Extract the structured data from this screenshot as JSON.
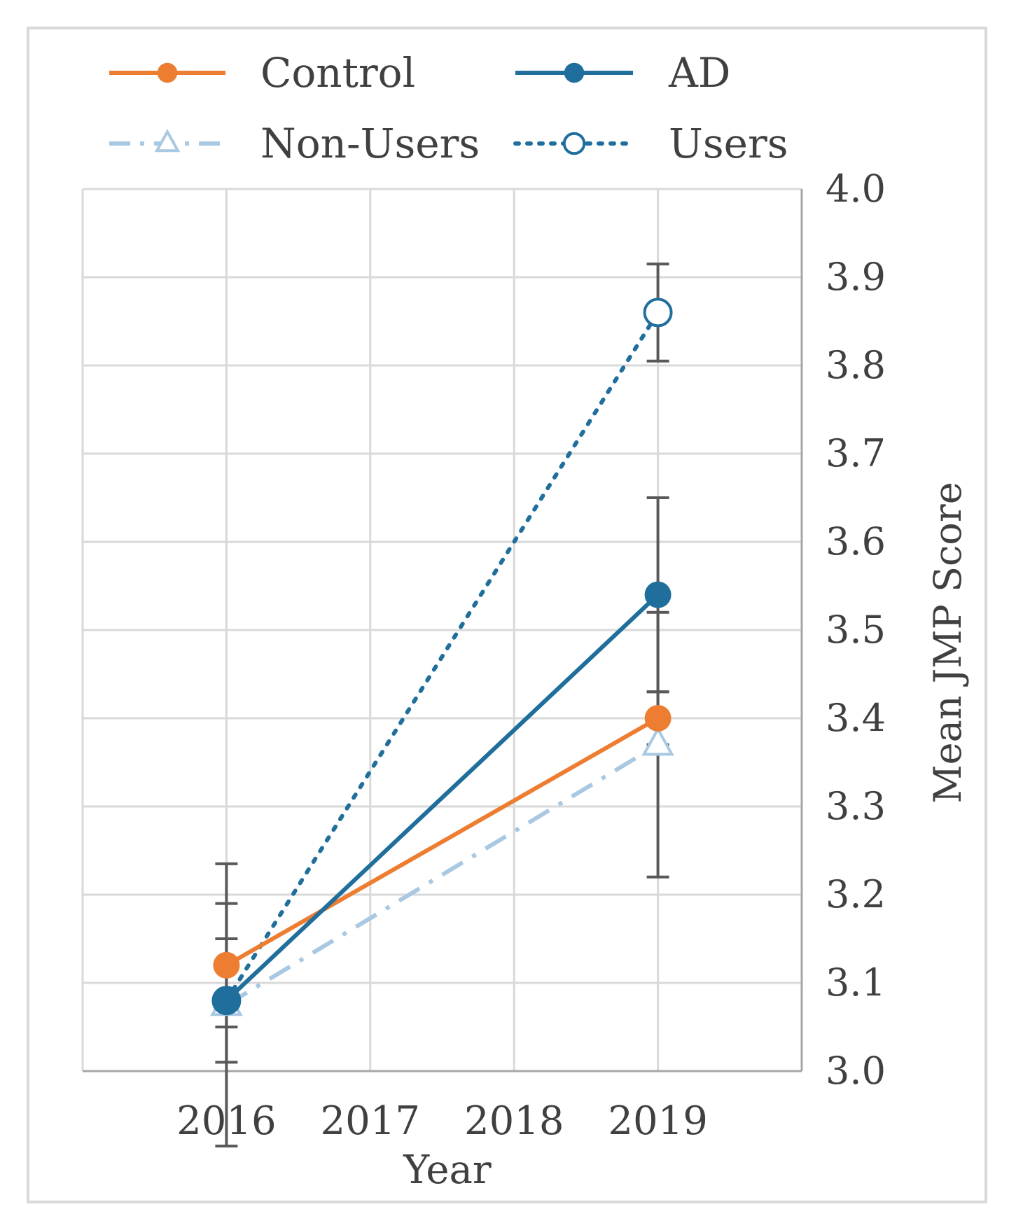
{
  "chart_data": {
    "type": "line",
    "title": "",
    "xlabel": "Year",
    "ylabel": "Mean JMP Score",
    "x": [
      "2016",
      "2017",
      "2018",
      "2019"
    ],
    "ylim": [
      3.0,
      4.0
    ],
    "yticks": [
      "3.0",
      "3.1",
      "3.2",
      "3.3",
      "3.4",
      "3.5",
      "3.6",
      "3.7",
      "3.8",
      "3.9",
      "4.0"
    ],
    "y_axis_side": "right",
    "grid": true,
    "legend_position": "top",
    "series": [
      {
        "name": "Control",
        "color": "#ed7d31",
        "style": "solid",
        "marker": "filled-circle",
        "points": [
          {
            "x": "2016",
            "y": 3.12
          },
          {
            "x": "2019",
            "y": 3.4
          }
        ],
        "error": [
          0.07,
          0.03
        ]
      },
      {
        "name": "AD",
        "color": "#1f6e9c",
        "style": "solid",
        "marker": "filled-circle",
        "points": [
          {
            "x": "2016",
            "y": 3.08
          },
          {
            "x": "2019",
            "y": 3.54
          }
        ],
        "error": [
          0.07,
          0.11
        ]
      },
      {
        "name": "Non-Users",
        "color": "#a9c8e2",
        "style": "dash-dot",
        "marker": "open-triangle",
        "points": [
          {
            "x": "2016",
            "y": 3.075
          },
          {
            "x": "2019",
            "y": 3.37
          }
        ],
        "error": [
          0.16,
          0.15
        ]
      },
      {
        "name": "Users",
        "color": "#1f6e9c",
        "style": "dotted",
        "marker": "open-circle",
        "points": [
          {
            "x": "2016",
            "y": 3.08
          },
          {
            "x": "2019",
            "y": 3.86
          }
        ],
        "error": [
          0.0,
          0.055
        ]
      }
    ]
  }
}
